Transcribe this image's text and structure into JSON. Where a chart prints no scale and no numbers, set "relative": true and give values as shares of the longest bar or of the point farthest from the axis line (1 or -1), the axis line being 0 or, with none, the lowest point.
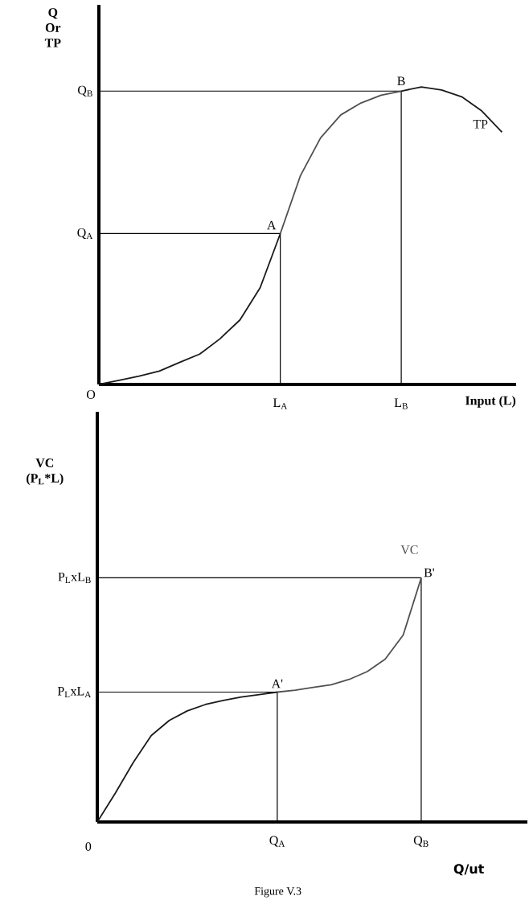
{
  "chart_data": [
    {
      "type": "line",
      "relative": true,
      "xlabel": "Input (L)",
      "ylabel": "**Q** Or **TP**",
      "categories": [
        null,
        null,
        null,
        null,
        null,
        null,
        null,
        null,
        null,
        "L$_{A}$",
        null,
        null,
        null,
        null,
        null,
        "L$_{B}$",
        null,
        null,
        null,
        null,
        null
      ],
      "series": [
        {
          "color": "#1a1a1a",
          "values": [
            0,
            0.014,
            0.028,
            0.045,
            0.074,
            0.102,
            0.153,
            0.217,
            0.325,
            0.507,
            null,
            null,
            null,
            null,
            null,
            null,
            null,
            null,
            null,
            null,
            null
          ]
        },
        {
          "color": "#505050",
          "values": [
            null,
            null,
            null,
            null,
            null,
            null,
            null,
            null,
            null,
            0.507,
            0.702,
            0.829,
            0.906,
            0.946,
            0.972,
            0.986,
            null,
            null,
            null,
            null,
            null
          ]
        },
        {
          "name": "TP",
          "color": "#1a1a1a",
          "values": [
            null,
            null,
            null,
            null,
            null,
            null,
            null,
            null,
            null,
            null,
            null,
            null,
            null,
            null,
            null,
            0.986,
            1,
            0.99,
            0.967,
            0.919,
            0.848
          ]
        }
      ],
      "ref_lines": [
        {
          "axis": "y",
          "value": 0.507,
          "label": "Q$_{A}$",
          "color": "#000000"
        },
        {
          "axis": "x",
          "value": "L$_{A}$",
          "color": "#000000"
        },
        {
          "axis": "y",
          "value": 0.986,
          "label": "Q$_{B}$",
          "color": "#000000"
        },
        {
          "axis": "x",
          "value": "L$_{B}$",
          "color": "#000000"
        }
      ],
      "annotations": [
        {
          "text": "A",
          "x": "L$_{A}$",
          "y": 0.507
        },
        {
          "text": "B",
          "x": "L$_{B}$",
          "y": 0.986
        },
        "O"
      ]
    },
    {
      "type": "line",
      "relative": true,
      "xlabel": "Q/ut",
      "ylabel": "VC (P$_{L}$*L)",
      "categories": [
        null,
        null,
        null,
        null,
        null,
        null,
        null,
        null,
        null,
        null,
        "Q$_{A}$",
        null,
        null,
        null,
        null,
        null,
        null,
        null,
        "Q$_{B}$"
      ],
      "series": [
        {
          "color": "#1a1a1a",
          "values": [
            0,
            0.118,
            0.244,
            0.354,
            0.416,
            0.455,
            0.481,
            0.498,
            0.512,
            0.522,
            0.532,
            null,
            null,
            null,
            null,
            null,
            null,
            null,
            null
          ]
        },
        {
          "name": "VC",
          "color": "#505050",
          "values": [
            null,
            null,
            null,
            null,
            null,
            null,
            null,
            null,
            null,
            null,
            0.532,
            0.54,
            0.551,
            0.562,
            0.584,
            0.616,
            0.667,
            0.766,
            1
          ]
        }
      ],
      "ref_lines": [
        {
          "axis": "y",
          "value": 0.532,
          "label": "P$_{L}$xL$_{A}$",
          "color": "#000000"
        },
        {
          "axis": "x",
          "value": "Q$_{A}$",
          "color": "#000000"
        },
        {
          "axis": "y",
          "value": 1,
          "label": "P$_{L}$xL$_{B}$",
          "color": "#000000"
        },
        {
          "axis": "x",
          "value": "Q$_{B}$",
          "color": "#000000"
        }
      ],
      "annotations": [
        {
          "text": "A'",
          "x": "Q$_{A}$",
          "y": 0.532
        },
        {
          "text": "B'",
          "x": "Q$_{B}$",
          "y": 1
        },
        "0",
        "Figure V.3"
      ]
    }
  ]
}
